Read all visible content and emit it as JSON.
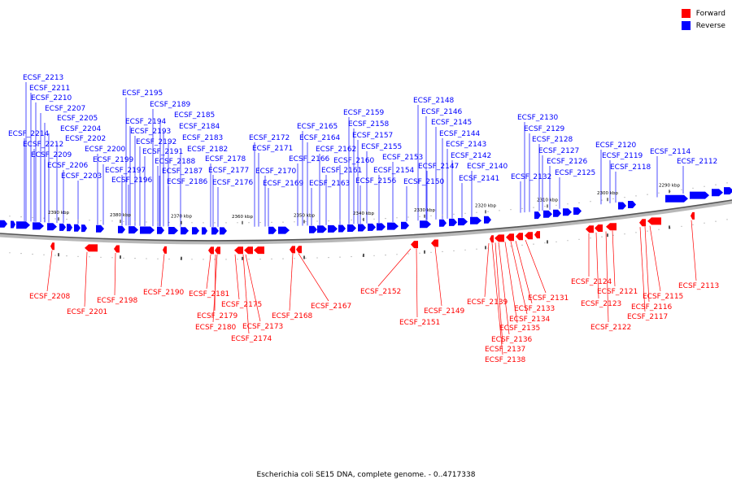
{
  "legend": {
    "forward_label": "Forward",
    "reverse_label": "Reverse",
    "forward_color": "#ff0000",
    "reverse_color": "#0000ff"
  },
  "caption": "Escherichia coli SE15 DNA, complete genome. - 0..4717338",
  "ticks": [
    "2390 kbp",
    "2380 kbp",
    "2370 kbp",
    "2360 kbp",
    "2350 kbp",
    "2340 kbp",
    "2330 kbp",
    "2320 kbp",
    "2310 kbp",
    "2300 kbp",
    "2290 kbp"
  ],
  "forward_genes": [
    "ECSF_2208",
    "ECSF_2201",
    "ECSF_2198",
    "ECSF_2190",
    "ECSF_2181",
    "ECSF_2179",
    "ECSF_2180",
    "ECSF_2175",
    "ECSF_2173",
    "ECSF_2174",
    "ECSF_2168",
    "ECSF_2167",
    "ECSF_2152",
    "ECSF_2151",
    "ECSF_2149",
    "ECSF_2139",
    "ECSF_2138",
    "ECSF_2137",
    "ECSF_2136",
    "ECSF_2135",
    "ECSF_2134",
    "ECSF_2133",
    "ECSF_2131",
    "ECSF_2124",
    "ECSF_2123",
    "ECSF_2122",
    "ECSF_2121",
    "ECSF_2117",
    "ECSF_2116",
    "ECSF_2115",
    "ECSF_2113"
  ],
  "reverse_genes": [
    "ECSF_2213",
    "ECSF_2211",
    "ECSF_2210",
    "ECSF_2207",
    "ECSF_2205",
    "ECSF_2204",
    "ECSF_2214",
    "ECSF_2212",
    "ECSF_2202",
    "ECSF_2209",
    "ECSF_2200",
    "ECSF_2206",
    "ECSF_2199",
    "ECSF_2203",
    "ECSF_2195",
    "ECSF_2189",
    "ECSF_2185",
    "ECSF_2194",
    "ECSF_2184",
    "ECSF_2193",
    "ECSF_2192",
    "ECSF_2183",
    "ECSF_2191",
    "ECSF_2182",
    "ECSF_2188",
    "ECSF_2197",
    "ECSF_2178",
    "ECSF_2187",
    "ECSF_2177",
    "ECSF_2196",
    "ECSF_2186",
    "ECSF_2176",
    "ECSF_2172",
    "ECSF_2171",
    "ECSF_2170",
    "ECSF_2169",
    "ECSF_2165",
    "ECSF_2164",
    "ECSF_2162",
    "ECSF_2166",
    "ECSF_2161",
    "ECSF_2163",
    "ECSF_2159",
    "ECSF_2158",
    "ECSF_2157",
    "ECSF_2155",
    "ECSF_2160",
    "ECSF_2154",
    "ECSF_2156",
    "ECSF_2153",
    "ECSF_2148",
    "ECSF_2146",
    "ECSF_2145",
    "ECSF_2144",
    "ECSF_2143",
    "ECSF_2142",
    "ECSF_2147",
    "ECSF_2150",
    "ECSF_2140",
    "ECSF_2141",
    "ECSF_2130",
    "ECSF_2129",
    "ECSF_2128",
    "ECSF_2127",
    "ECSF_2126",
    "ECSF_2132",
    "ECSF_2125",
    "ECSF_2120",
    "ECSF_2119",
    "ECSF_2118",
    "ECSF_2114",
    "ECSF_2112"
  ]
}
